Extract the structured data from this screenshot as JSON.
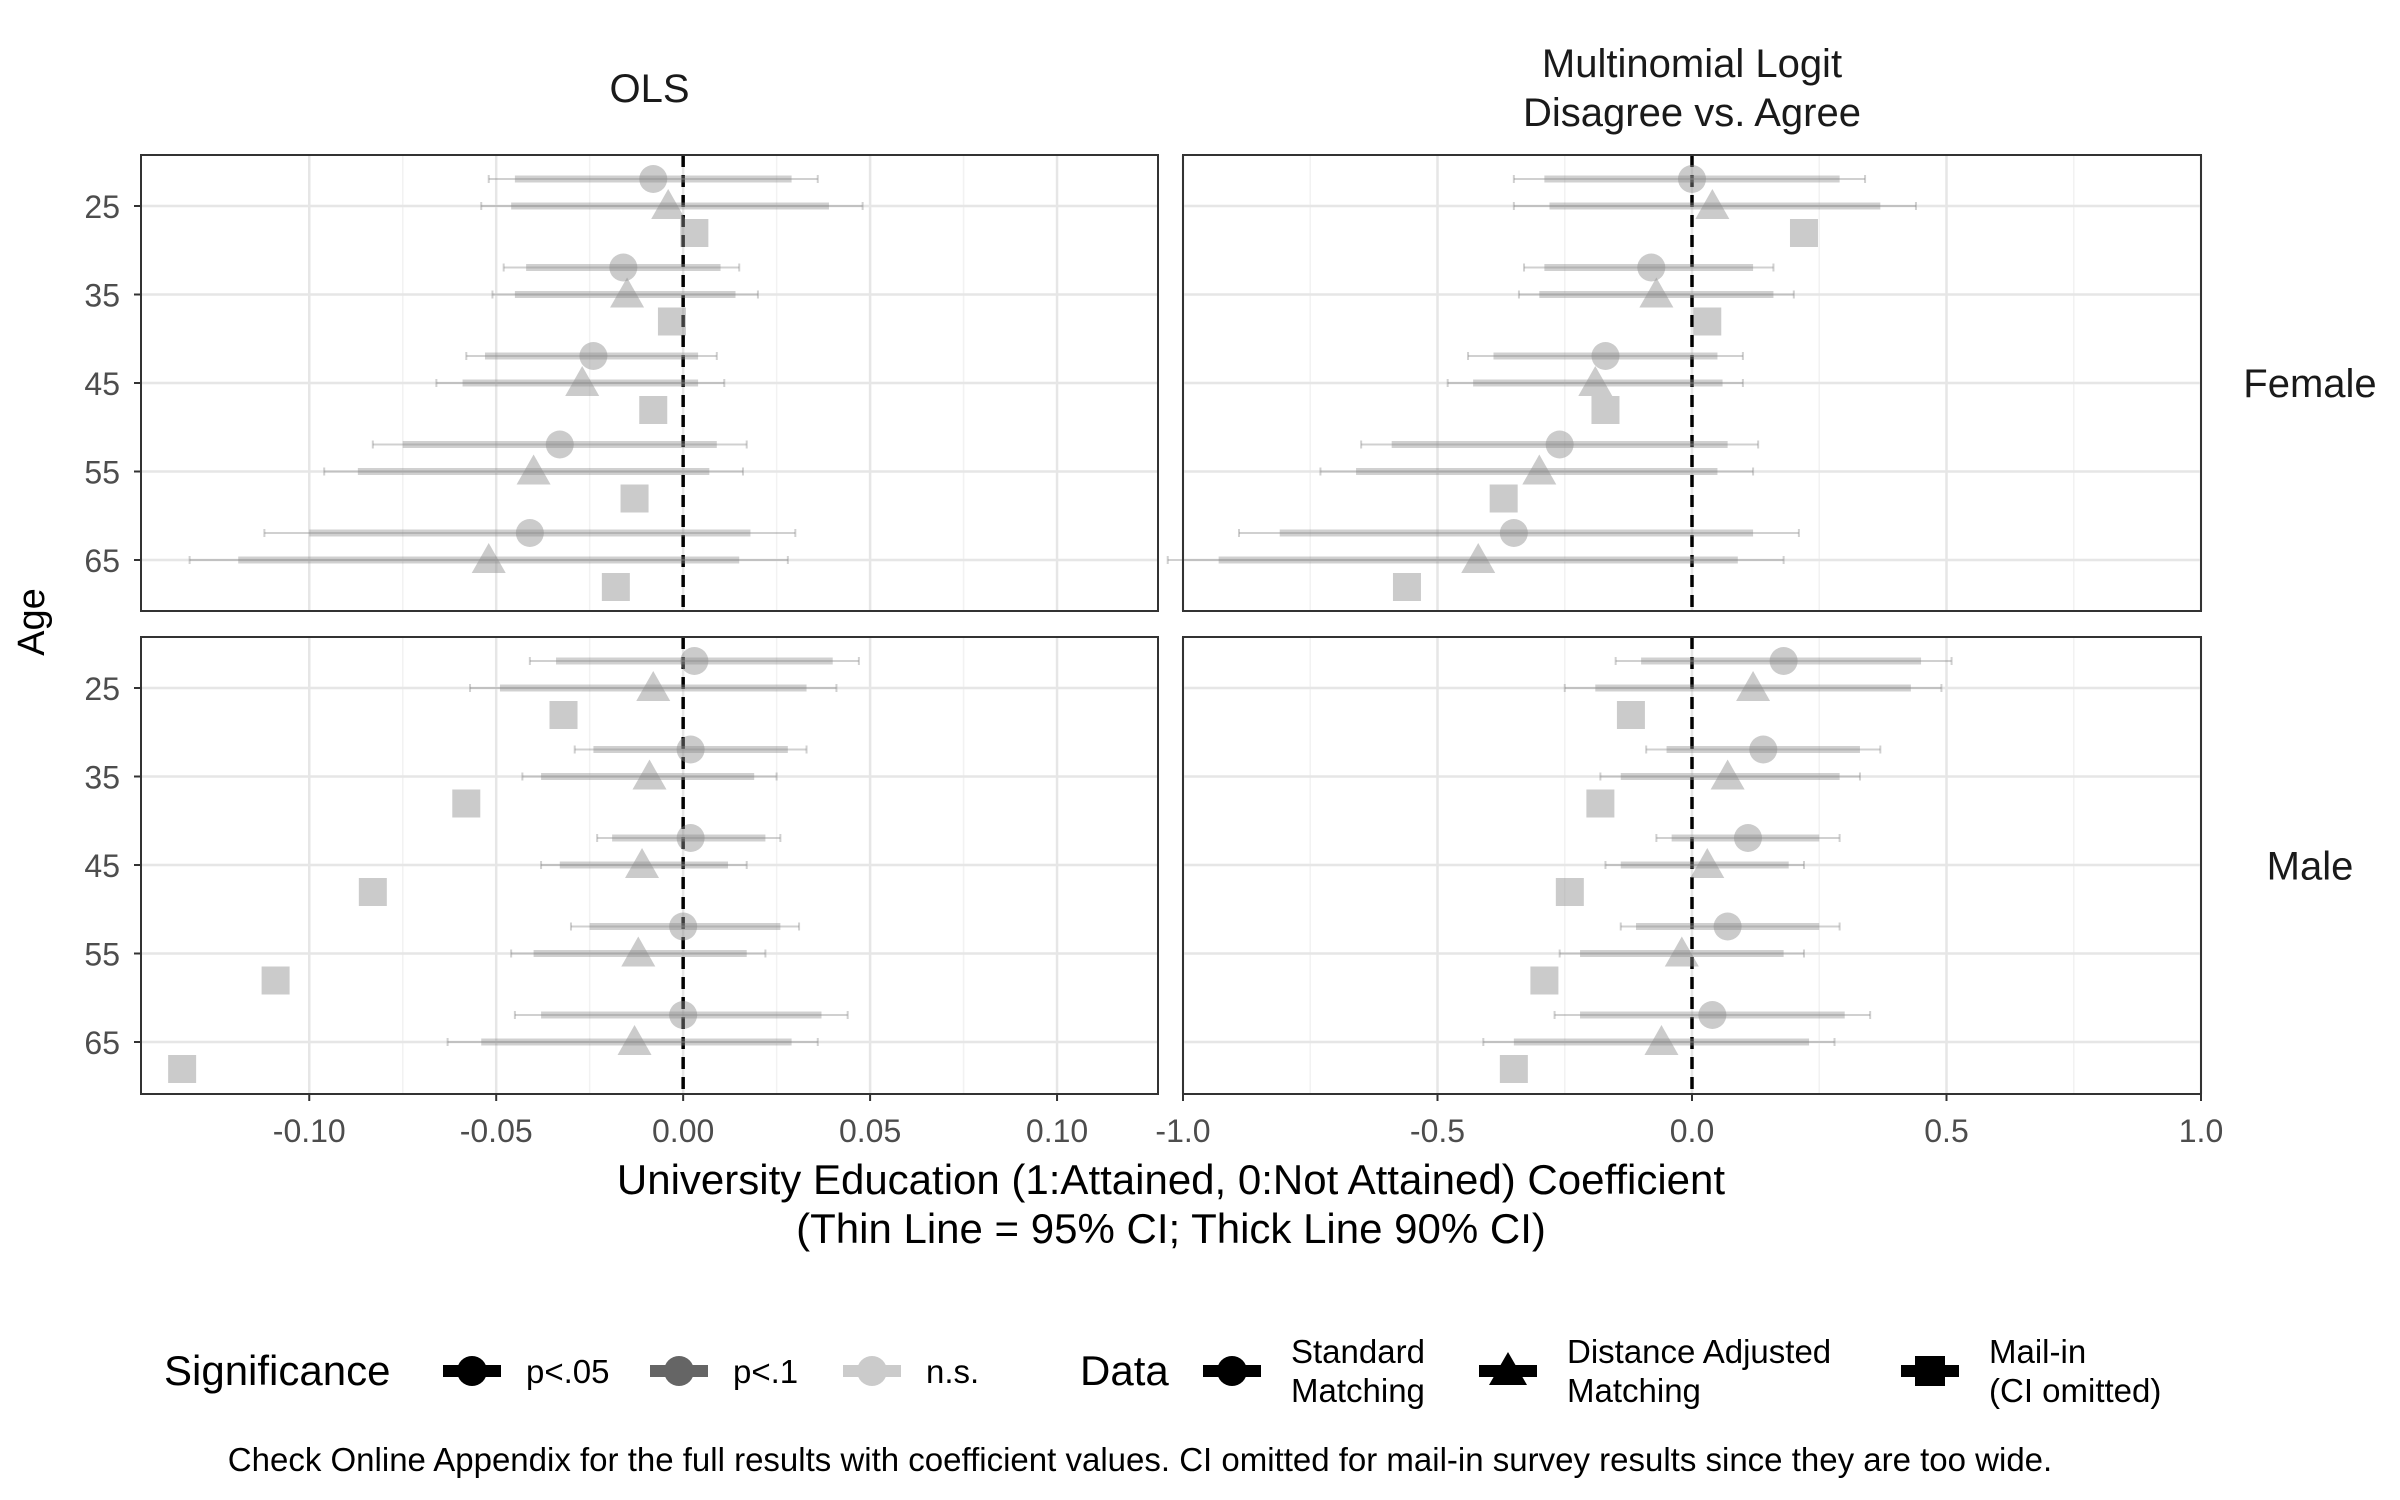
{
  "chart_data": {
    "type": "scatter",
    "chart_kind": "faceted coefficient plot with confidence intervals",
    "ylabel": "Age",
    "xlabel": "University Education (1:Attained, 0:Not Attained) Coefficient",
    "xlabel_sub": "(Thin Line = 95% CI; Thick Line 90% CI)",
    "caption": "Check Online Appendix for the full results with coefficient values. CI omitted for mail-in survey results since they are too wide.",
    "categories": [
      "25",
      "35",
      "45",
      "55",
      "65"
    ],
    "columns": [
      {
        "title": [
          "OLS"
        ],
        "xlim": [
          -0.145,
          0.127
        ],
        "xticks": [
          -0.1,
          -0.05,
          0.0,
          0.05,
          0.1
        ],
        "xtick_labels": [
          "-0.10",
          "-0.05",
          "0.00",
          "0.05",
          "0.10"
        ]
      },
      {
        "title": [
          "Multinomial Logit",
          "Disagree vs. Agree"
        ],
        "xlim": [
          -1.0,
          1.0
        ],
        "xticks": [
          -1.0,
          -0.5,
          0.0,
          0.5,
          1.0
        ],
        "xtick_labels": [
          "-1.0",
          "-0.5",
          "0.0",
          "0.5",
          "1.0"
        ]
      }
    ],
    "rows": [
      "Female",
      "Male"
    ],
    "reference_line": 0,
    "grid": true,
    "legend_position": "bottom",
    "legend": {
      "significance_title": "Significance",
      "significance_items": [
        {
          "label": "p<.05",
          "opacity": 1.0
        },
        {
          "label": "p<.1",
          "opacity": 0.6
        },
        {
          "label": "n.s.",
          "opacity": 0.2
        }
      ],
      "data_title": "Data",
      "data_items": [
        {
          "label": [
            "Standard",
            "Matching"
          ],
          "shape": "circle"
        },
        {
          "label": [
            "Distance Adjusted",
            "Matching"
          ],
          "shape": "triangle"
        },
        {
          "label": [
            "Mail-in",
            "(CI omitted)"
          ],
          "shape": "square"
        }
      ]
    },
    "series": [
      {
        "shape": "circle",
        "facets": [
          {
            "col": 0,
            "row": "Female",
            "points": [
              {
                "age": "25",
                "est": -0.008,
                "lo90": -0.045,
                "hi90": 0.029,
                "lo95": -0.052,
                "hi95": 0.036,
                "sig": "n.s."
              },
              {
                "age": "35",
                "est": -0.016,
                "lo90": -0.042,
                "hi90": 0.01,
                "lo95": -0.048,
                "hi95": 0.015,
                "sig": "n.s."
              },
              {
                "age": "45",
                "est": -0.024,
                "lo90": -0.053,
                "hi90": 0.004,
                "lo95": -0.058,
                "hi95": 0.009,
                "sig": "n.s."
              },
              {
                "age": "55",
                "est": -0.033,
                "lo90": -0.075,
                "hi90": 0.009,
                "lo95": -0.083,
                "hi95": 0.017,
                "sig": "n.s."
              },
              {
                "age": "65",
                "est": -0.041,
                "lo90": -0.1,
                "hi90": 0.018,
                "lo95": -0.112,
                "hi95": 0.03,
                "sig": "n.s."
              }
            ]
          },
          {
            "col": 0,
            "row": "Male",
            "points": [
              {
                "age": "25",
                "est": 0.003,
                "lo90": -0.034,
                "hi90": 0.04,
                "lo95": -0.041,
                "hi95": 0.047,
                "sig": "n.s."
              },
              {
                "age": "35",
                "est": 0.002,
                "lo90": -0.024,
                "hi90": 0.028,
                "lo95": -0.029,
                "hi95": 0.033,
                "sig": "n.s."
              },
              {
                "age": "45",
                "est": 0.002,
                "lo90": -0.019,
                "hi90": 0.022,
                "lo95": -0.023,
                "hi95": 0.026,
                "sig": "n.s."
              },
              {
                "age": "55",
                "est": 0.0,
                "lo90": -0.025,
                "hi90": 0.026,
                "lo95": -0.03,
                "hi95": 0.031,
                "sig": "n.s."
              },
              {
                "age": "65",
                "est": 0.0,
                "lo90": -0.038,
                "hi90": 0.037,
                "lo95": -0.045,
                "hi95": 0.044,
                "sig": "n.s."
              }
            ]
          },
          {
            "col": 1,
            "row": "Female",
            "points": [
              {
                "age": "25",
                "est": 0.0,
                "lo90": -0.29,
                "hi90": 0.29,
                "lo95": -0.35,
                "hi95": 0.34,
                "sig": "n.s."
              },
              {
                "age": "35",
                "est": -0.08,
                "lo90": -0.29,
                "hi90": 0.12,
                "lo95": -0.33,
                "hi95": 0.16,
                "sig": "n.s."
              },
              {
                "age": "45",
                "est": -0.17,
                "lo90": -0.39,
                "hi90": 0.05,
                "lo95": -0.44,
                "hi95": 0.1,
                "sig": "n.s."
              },
              {
                "age": "55",
                "est": -0.26,
                "lo90": -0.59,
                "hi90": 0.07,
                "lo95": -0.65,
                "hi95": 0.13,
                "sig": "n.s."
              },
              {
                "age": "65",
                "est": -0.35,
                "lo90": -0.81,
                "hi90": 0.12,
                "lo95": -0.89,
                "hi95": 0.21,
                "sig": "n.s."
              }
            ]
          },
          {
            "col": 1,
            "row": "Male",
            "points": [
              {
                "age": "25",
                "est": 0.18,
                "lo90": -0.1,
                "hi90": 0.45,
                "lo95": -0.15,
                "hi95": 0.51,
                "sig": "n.s."
              },
              {
                "age": "35",
                "est": 0.14,
                "lo90": -0.05,
                "hi90": 0.33,
                "lo95": -0.09,
                "hi95": 0.37,
                "sig": "n.s."
              },
              {
                "age": "45",
                "est": 0.11,
                "lo90": -0.04,
                "hi90": 0.25,
                "lo95": -0.07,
                "hi95": 0.29,
                "sig": "n.s."
              },
              {
                "age": "55",
                "est": 0.07,
                "lo90": -0.11,
                "hi90": 0.25,
                "lo95": -0.14,
                "hi95": 0.29,
                "sig": "n.s."
              },
              {
                "age": "65",
                "est": 0.04,
                "lo90": -0.22,
                "hi90": 0.3,
                "lo95": -0.27,
                "hi95": 0.35,
                "sig": "n.s."
              }
            ]
          }
        ]
      },
      {
        "shape": "triangle",
        "facets": [
          {
            "col": 0,
            "row": "Female",
            "points": [
              {
                "age": "25",
                "est": -0.004,
                "lo90": -0.046,
                "hi90": 0.039,
                "lo95": -0.054,
                "hi95": 0.048,
                "sig": "n.s."
              },
              {
                "age": "35",
                "est": -0.015,
                "lo90": -0.045,
                "hi90": 0.014,
                "lo95": -0.051,
                "hi95": 0.02,
                "sig": "n.s."
              },
              {
                "age": "45",
                "est": -0.027,
                "lo90": -0.059,
                "hi90": 0.004,
                "lo95": -0.066,
                "hi95": 0.011,
                "sig": "n.s."
              },
              {
                "age": "55",
                "est": -0.04,
                "lo90": -0.087,
                "hi90": 0.007,
                "lo95": -0.096,
                "hi95": 0.016,
                "sig": "n.s."
              },
              {
                "age": "65",
                "est": -0.052,
                "lo90": -0.119,
                "hi90": 0.015,
                "lo95": -0.132,
                "hi95": 0.028,
                "sig": "n.s."
              }
            ]
          },
          {
            "col": 0,
            "row": "Male",
            "points": [
              {
                "age": "25",
                "est": -0.008,
                "lo90": -0.049,
                "hi90": 0.033,
                "lo95": -0.057,
                "hi95": 0.041,
                "sig": "n.s."
              },
              {
                "age": "35",
                "est": -0.009,
                "lo90": -0.038,
                "hi90": 0.019,
                "lo95": -0.043,
                "hi95": 0.025,
                "sig": "n.s."
              },
              {
                "age": "45",
                "est": -0.011,
                "lo90": -0.033,
                "hi90": 0.012,
                "lo95": -0.038,
                "hi95": 0.017,
                "sig": "n.s."
              },
              {
                "age": "55",
                "est": -0.012,
                "lo90": -0.04,
                "hi90": 0.017,
                "lo95": -0.046,
                "hi95": 0.022,
                "sig": "n.s."
              },
              {
                "age": "65",
                "est": -0.013,
                "lo90": -0.054,
                "hi90": 0.029,
                "lo95": -0.063,
                "hi95": 0.036,
                "sig": "n.s."
              }
            ]
          },
          {
            "col": 1,
            "row": "Female",
            "points": [
              {
                "age": "25",
                "est": 0.04,
                "lo90": -0.28,
                "hi90": 0.37,
                "lo95": -0.35,
                "hi95": 0.44,
                "sig": "n.s."
              },
              {
                "age": "35",
                "est": -0.07,
                "lo90": -0.3,
                "hi90": 0.16,
                "lo95": -0.34,
                "hi95": 0.2,
                "sig": "n.s."
              },
              {
                "age": "45",
                "est": -0.19,
                "lo90": -0.43,
                "hi90": 0.06,
                "lo95": -0.48,
                "hi95": 0.1,
                "sig": "n.s."
              },
              {
                "age": "55",
                "est": -0.3,
                "lo90": -0.66,
                "hi90": 0.05,
                "lo95": -0.73,
                "hi95": 0.12,
                "sig": "n.s."
              },
              {
                "age": "65",
                "est": -0.42,
                "lo90": -0.93,
                "hi90": 0.09,
                "lo95": -1.03,
                "hi95": 0.18,
                "sig": "n.s."
              }
            ]
          },
          {
            "col": 1,
            "row": "Male",
            "points": [
              {
                "age": "25",
                "est": 0.12,
                "lo90": -0.19,
                "hi90": 0.43,
                "lo95": -0.25,
                "hi95": 0.49,
                "sig": "n.s."
              },
              {
                "age": "35",
                "est": 0.07,
                "lo90": -0.14,
                "hi90": 0.29,
                "lo95": -0.18,
                "hi95": 0.33,
                "sig": "n.s."
              },
              {
                "age": "45",
                "est": 0.03,
                "lo90": -0.14,
                "hi90": 0.19,
                "lo95": -0.17,
                "hi95": 0.22,
                "sig": "n.s."
              },
              {
                "age": "55",
                "est": -0.02,
                "lo90": -0.22,
                "hi90": 0.18,
                "lo95": -0.26,
                "hi95": 0.22,
                "sig": "n.s."
              },
              {
                "age": "65",
                "est": -0.06,
                "lo90": -0.35,
                "hi90": 0.23,
                "lo95": -0.41,
                "hi95": 0.28,
                "sig": "n.s."
              }
            ]
          }
        ]
      },
      {
        "shape": "square",
        "ci_omitted": true,
        "facets": [
          {
            "col": 0,
            "row": "Female",
            "points": [
              {
                "age": "25",
                "est": 0.003,
                "sig": "n.s."
              },
              {
                "age": "35",
                "est": -0.003,
                "sig": "n.s."
              },
              {
                "age": "45",
                "est": -0.008,
                "sig": "n.s."
              },
              {
                "age": "55",
                "est": -0.013,
                "sig": "n.s."
              },
              {
                "age": "65",
                "est": -0.018,
                "sig": "n.s."
              }
            ]
          },
          {
            "col": 0,
            "row": "Male",
            "points": [
              {
                "age": "25",
                "est": -0.032,
                "sig": "n.s."
              },
              {
                "age": "35",
                "est": -0.058,
                "sig": "n.s."
              },
              {
                "age": "45",
                "est": -0.083,
                "sig": "n.s."
              },
              {
                "age": "55",
                "est": -0.109,
                "sig": "n.s."
              },
              {
                "age": "65",
                "est": -0.134,
                "sig": "n.s."
              }
            ]
          },
          {
            "col": 1,
            "row": "Female",
            "points": [
              {
                "age": "25",
                "est": 0.22,
                "sig": "n.s."
              },
              {
                "age": "35",
                "est": 0.03,
                "sig": "n.s."
              },
              {
                "age": "45",
                "est": -0.17,
                "sig": "n.s."
              },
              {
                "age": "55",
                "est": -0.37,
                "sig": "n.s."
              },
              {
                "age": "65",
                "est": -0.56,
                "sig": "n.s."
              }
            ]
          },
          {
            "col": 1,
            "row": "Male",
            "points": [
              {
                "age": "25",
                "est": -0.12,
                "sig": "n.s."
              },
              {
                "age": "35",
                "est": -0.18,
                "sig": "n.s."
              },
              {
                "age": "45",
                "est": -0.24,
                "sig": "n.s."
              },
              {
                "age": "55",
                "est": -0.29,
                "sig": "n.s."
              },
              {
                "age": "65",
                "est": -0.35,
                "sig": "n.s."
              }
            ]
          }
        ]
      }
    ]
  }
}
